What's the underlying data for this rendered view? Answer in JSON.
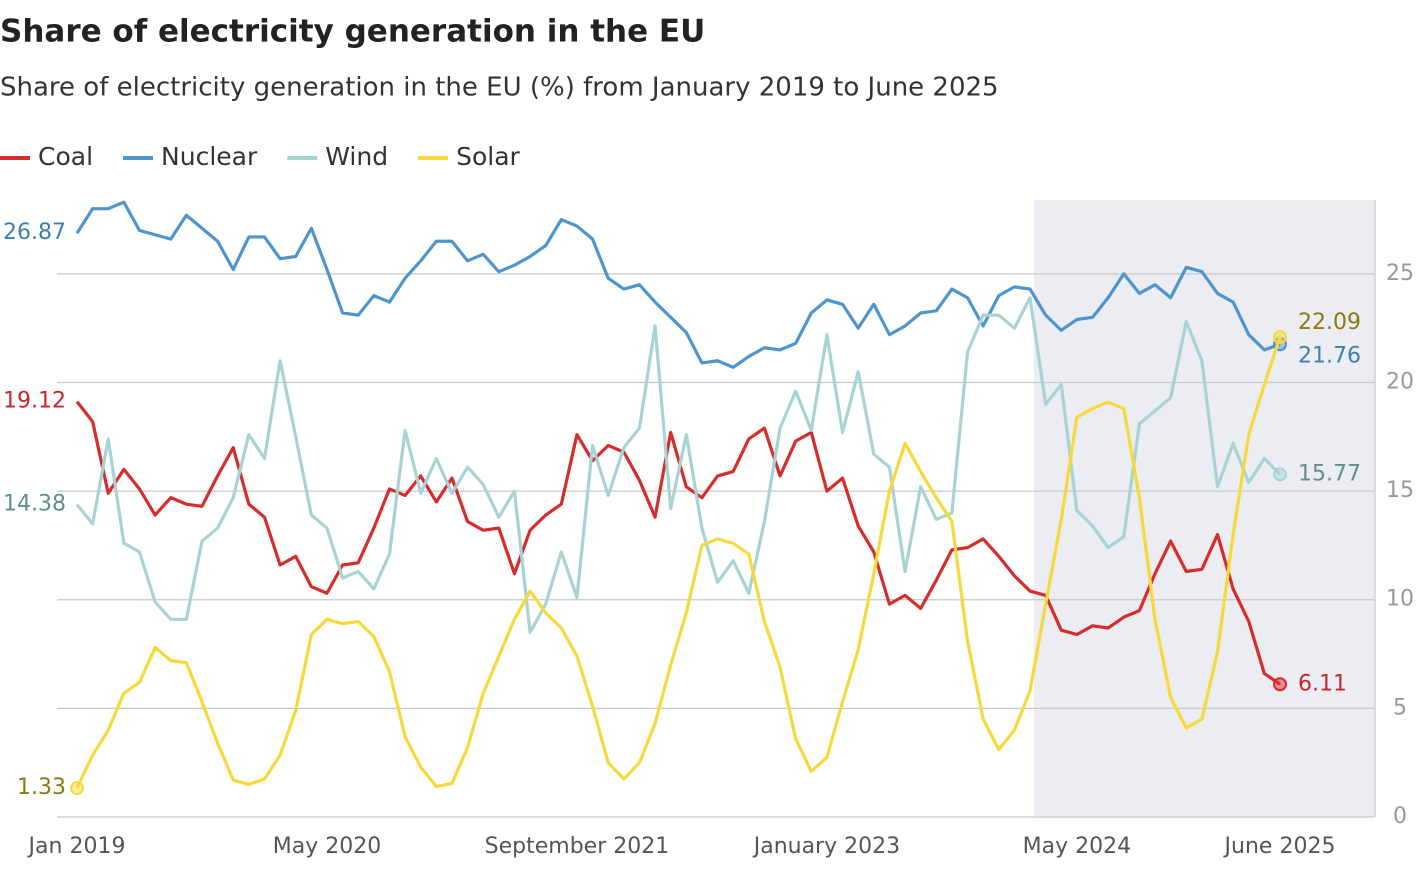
{
  "chart_data": {
    "type": "line",
    "title": "Share of electricity generation in the EU",
    "subtitle": "Share of electricity generation in the EU (%) from January 2019 to June 2025",
    "categories": [
      "Jan 2019",
      null,
      null,
      null,
      null,
      null,
      null,
      null,
      null,
      null,
      null,
      null,
      null,
      null,
      null,
      null,
      "May 2020",
      null,
      null,
      null,
      null,
      null,
      null,
      null,
      null,
      null,
      null,
      null,
      null,
      null,
      null,
      null,
      "September 2021",
      null,
      null,
      null,
      null,
      null,
      null,
      null,
      null,
      null,
      null,
      null,
      null,
      null,
      null,
      null,
      "January 2023",
      null,
      null,
      null,
      null,
      null,
      null,
      null,
      null,
      null,
      null,
      null,
      null,
      null,
      null,
      null,
      "May 2024",
      null,
      null,
      null,
      null,
      null,
      null,
      null,
      null,
      null,
      null,
      null,
      null,
      "June 2025"
    ],
    "series": [
      {
        "name": "Coal",
        "color": "#d62c2c",
        "values": [
          19.12,
          18.2,
          14.9,
          16.0,
          15.1,
          13.9,
          14.7,
          14.4,
          14.3,
          15.7,
          17.0,
          14.4,
          13.8,
          11.6,
          12.0,
          10.6,
          10.3,
          11.6,
          11.7,
          13.3,
          15.1,
          14.8,
          15.7,
          14.5,
          15.6,
          13.6,
          13.2,
          13.3,
          11.2,
          13.2,
          13.9,
          14.4,
          17.6,
          16.4,
          17.1,
          16.8,
          15.5,
          13.8,
          17.7,
          15.2,
          14.7,
          15.7,
          15.9,
          17.4,
          17.9,
          15.7,
          17.3,
          17.7,
          15.0,
          15.6,
          13.4,
          12.2,
          9.8,
          10.2,
          9.6,
          10.9,
          12.3,
          12.4,
          12.8,
          12.0,
          11.1,
          10.4,
          10.2,
          8.6,
          8.4,
          8.8,
          8.7,
          9.2,
          9.5,
          11.2,
          12.7,
          11.3,
          11.4,
          13.0,
          10.5,
          9.0,
          6.6,
          6.11
        ]
      },
      {
        "name": "Nuclear",
        "color": "#4f95cd",
        "values": [
          26.87,
          28.0,
          28.0,
          28.3,
          27.0,
          26.8,
          26.6,
          27.7,
          27.1,
          26.5,
          25.2,
          26.7,
          26.7,
          25.7,
          25.8,
          27.1,
          25.2,
          23.2,
          23.1,
          24.0,
          23.7,
          24.8,
          25.6,
          26.5,
          26.5,
          25.6,
          25.9,
          25.1,
          25.4,
          25.8,
          26.3,
          27.5,
          27.2,
          26.6,
          24.8,
          24.3,
          24.5,
          23.7,
          23.0,
          22.3,
          20.9,
          21.0,
          20.7,
          21.2,
          21.6,
          21.5,
          21.8,
          23.2,
          23.8,
          23.6,
          22.5,
          23.6,
          22.2,
          22.6,
          23.2,
          23.3,
          24.3,
          23.9,
          22.6,
          24.0,
          24.4,
          24.3,
          23.1,
          22.4,
          22.9,
          23.0,
          23.9,
          25.0,
          24.1,
          24.5,
          23.9,
          25.3,
          25.1,
          24.1,
          23.7,
          22.2,
          21.5,
          21.76
        ]
      },
      {
        "name": "Wind",
        "color": "#a8d3d5",
        "values": [
          14.38,
          13.5,
          17.4,
          12.6,
          12.2,
          9.9,
          9.1,
          9.1,
          12.7,
          13.3,
          14.7,
          17.6,
          16.5,
          21.0,
          17.5,
          13.9,
          13.3,
          11.0,
          11.3,
          10.5,
          12.1,
          17.8,
          14.9,
          16.5,
          14.9,
          16.1,
          15.3,
          13.8,
          15.0,
          8.5,
          9.8,
          12.2,
          10.1,
          17.1,
          14.8,
          17.0,
          17.9,
          22.6,
          14.2,
          17.6,
          13.3,
          10.8,
          11.8,
          10.3,
          13.6,
          17.9,
          19.6,
          17.8,
          22.2,
          17.7,
          20.5,
          16.7,
          16.1,
          11.3,
          15.2,
          13.7,
          14.0,
          21.4,
          23.1,
          23.1,
          22.5,
          23.9,
          19.0,
          19.9,
          14.1,
          13.4,
          12.4,
          12.9,
          18.1,
          18.7,
          19.3,
          22.8,
          21.0,
          15.2,
          17.2,
          15.4,
          16.5,
          15.77
        ]
      },
      {
        "name": "Solar",
        "color": "#f7d93c",
        "values": [
          1.33,
          2.85,
          4.0,
          5.7,
          6.2,
          7.8,
          7.2,
          7.1,
          5.3,
          3.4,
          1.7,
          1.5,
          1.75,
          2.85,
          4.9,
          8.4,
          9.1,
          8.9,
          9.0,
          8.3,
          6.7,
          3.7,
          2.3,
          1.4,
          1.55,
          3.2,
          5.7,
          7.4,
          9.1,
          10.4,
          9.4,
          8.7,
          7.4,
          5.1,
          2.5,
          1.75,
          2.5,
          4.3,
          7.0,
          9.4,
          12.5,
          12.8,
          12.6,
          12.1,
          9.0,
          6.9,
          3.6,
          2.1,
          2.75,
          5.3,
          7.7,
          11.2,
          15.0,
          17.2,
          15.9,
          14.7,
          13.6,
          8.1,
          4.5,
          3.1,
          4.0,
          5.8,
          9.8,
          13.7,
          18.4,
          18.8,
          19.1,
          18.8,
          14.7,
          9.1,
          5.5,
          4.1,
          4.5,
          7.6,
          13.0,
          17.6,
          19.9,
          22.09
        ]
      }
    ],
    "ylim": [
      0,
      28.4
    ],
    "yticks": [
      0,
      5,
      10,
      15,
      20,
      25
    ],
    "grid": true,
    "legend": "top-left"
  }
}
